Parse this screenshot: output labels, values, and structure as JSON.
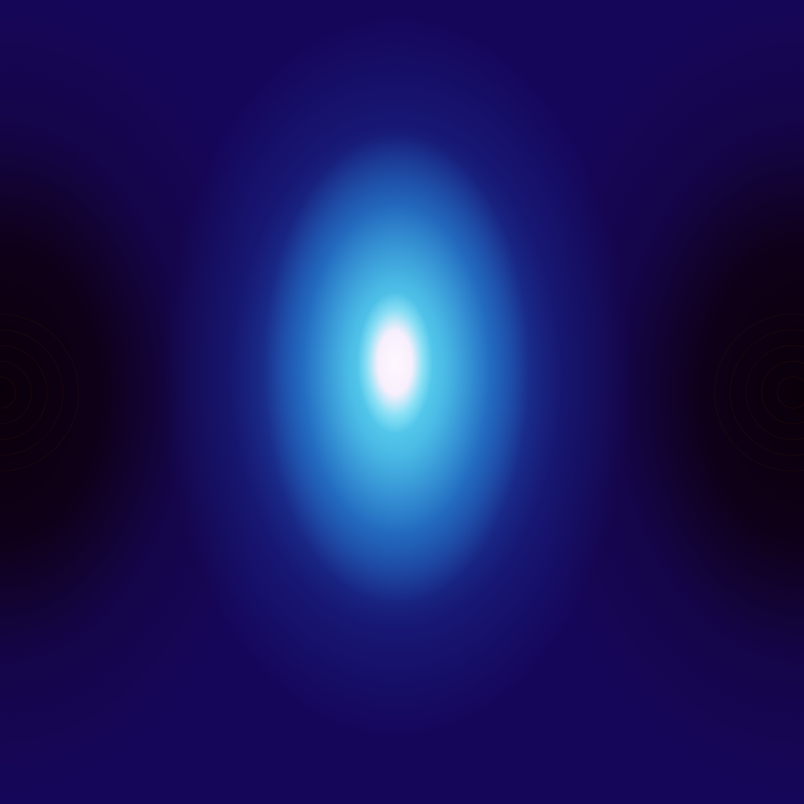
{
  "scene": {
    "subject": "glowing-light-source",
    "colors": {
      "background": "#16065a",
      "shadow": "#0a000a",
      "glow_blue": "#286ed2",
      "glow_cyan": "#6ee6f5",
      "core_white": "#fff8ff",
      "ring_tint": "#3a1408"
    }
  }
}
